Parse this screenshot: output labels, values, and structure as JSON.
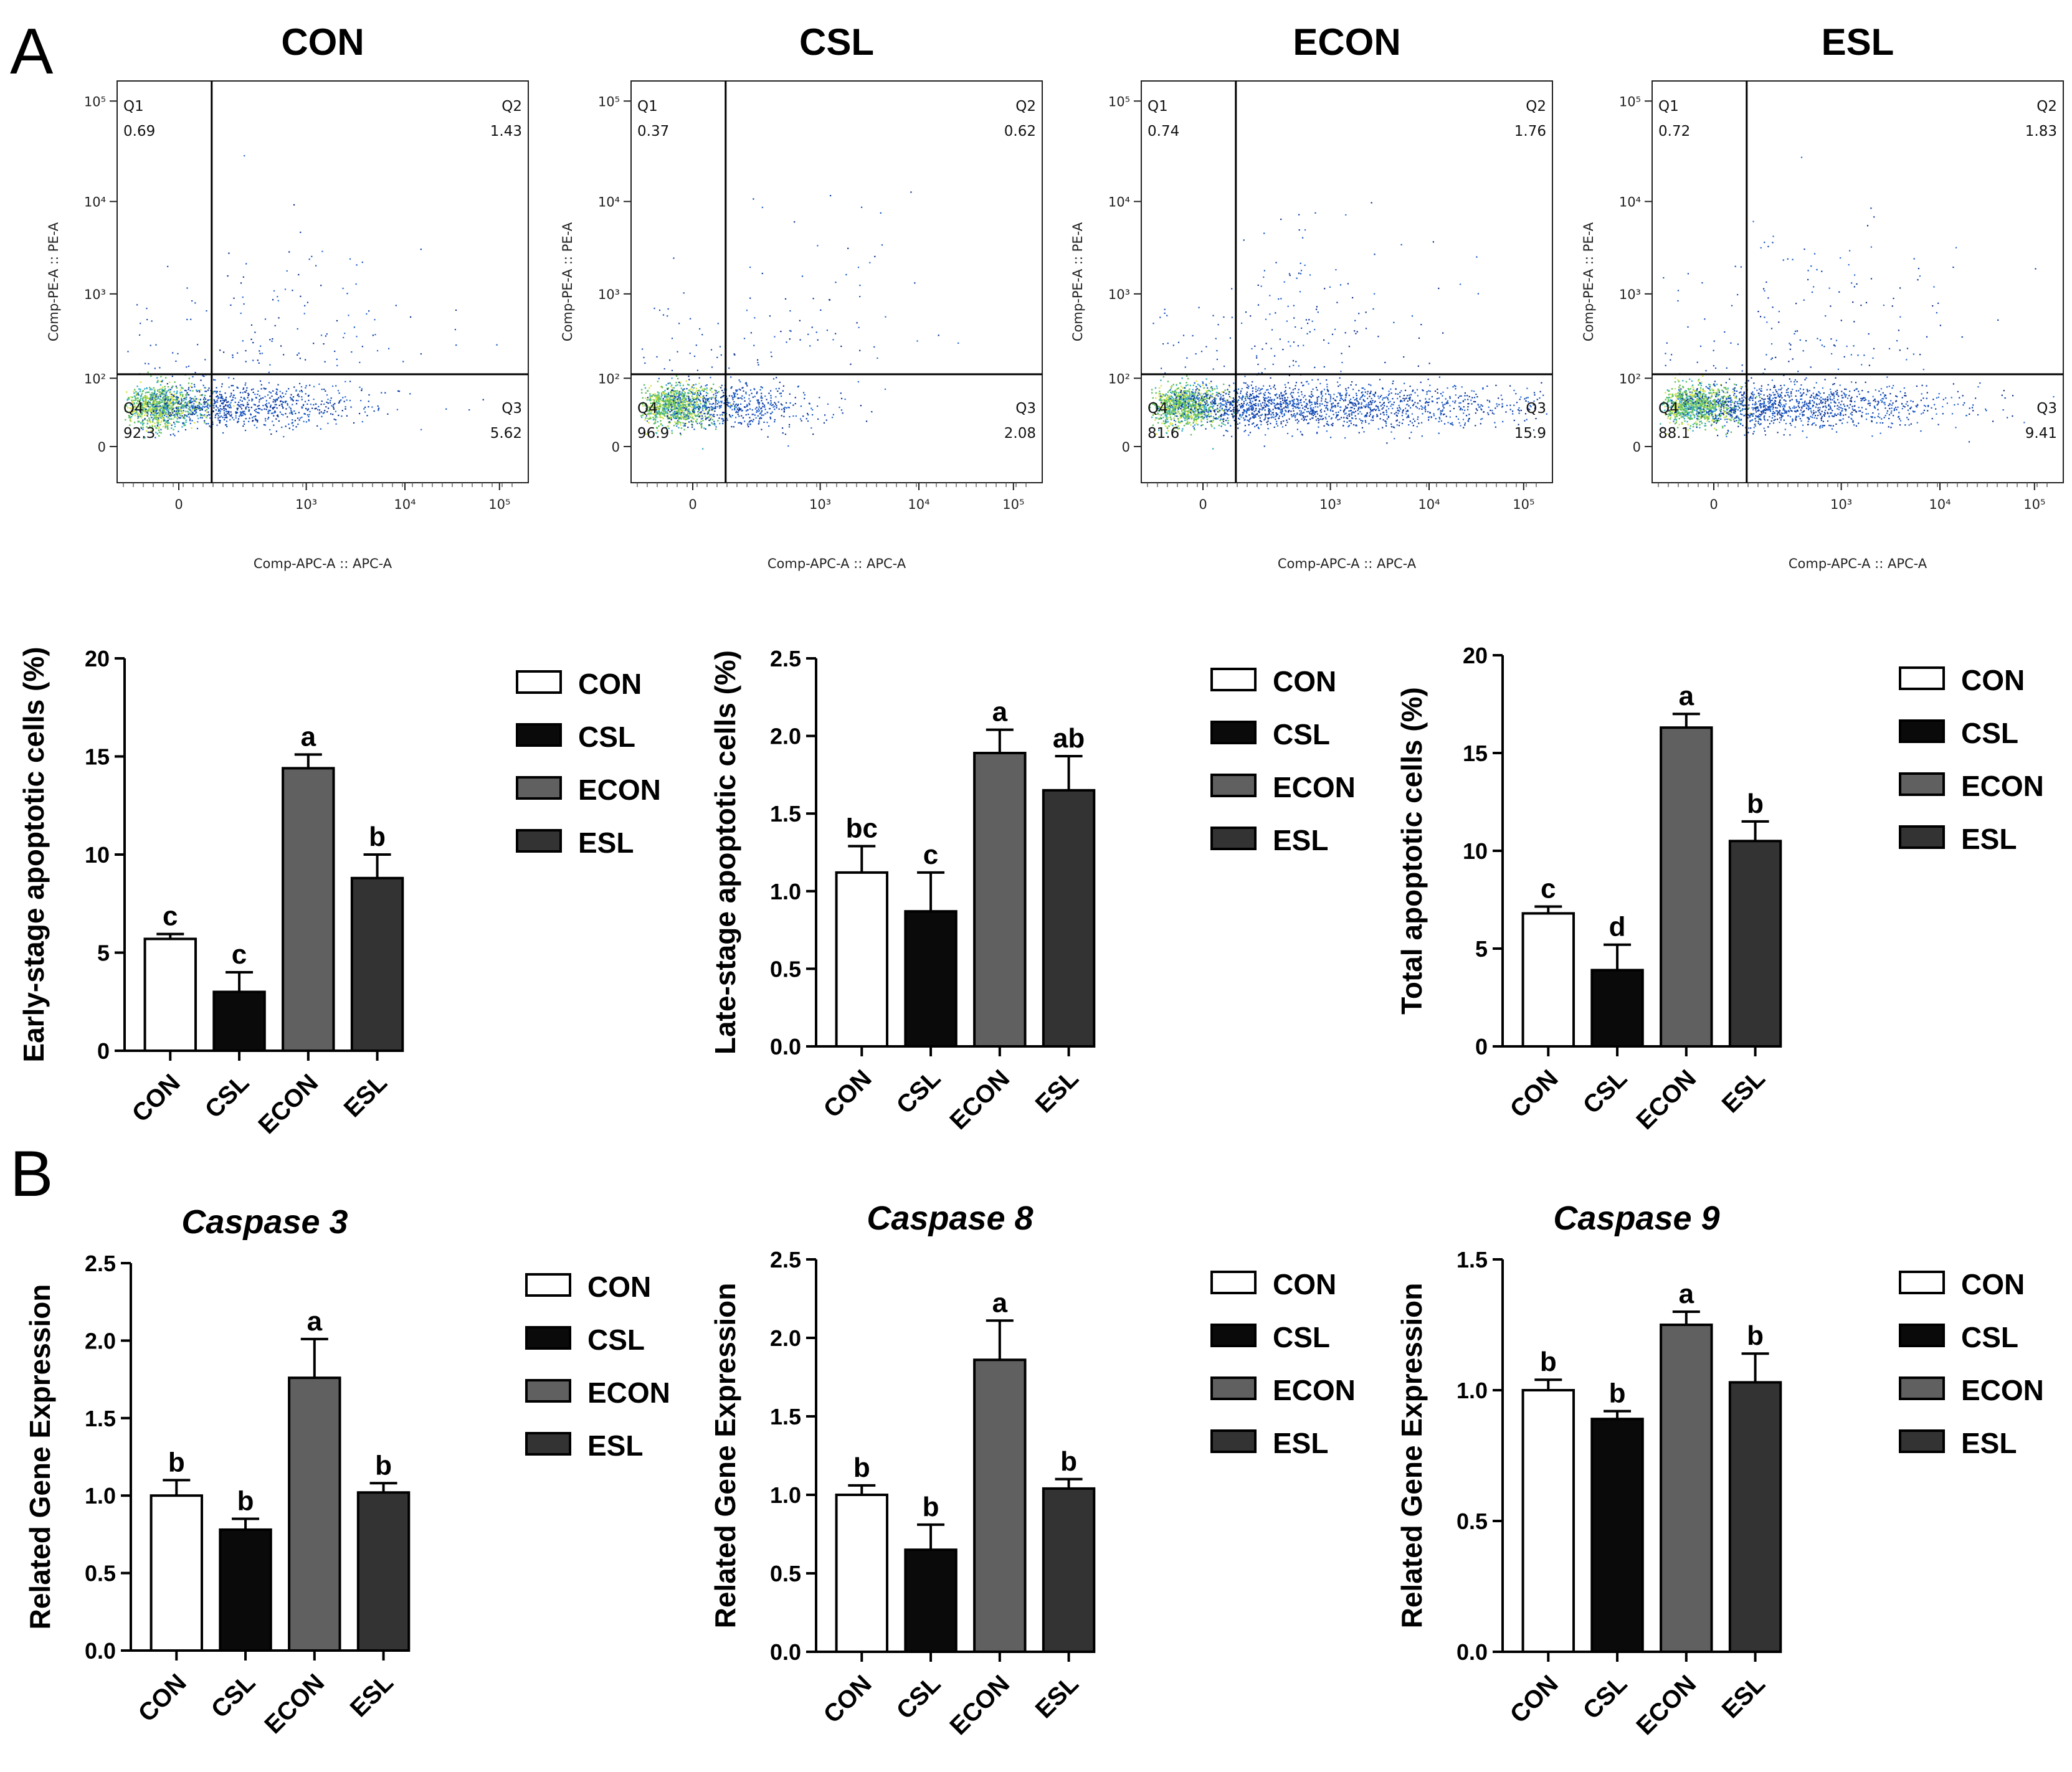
{
  "panel_labels": [
    "A",
    "B"
  ],
  "groups": [
    "CON",
    "CSL",
    "ECON",
    "ESL"
  ],
  "colors": {
    "CON": "#ffffff",
    "CSL": "#0a0a0a",
    "ECON": "#606060",
    "ESL": "#333333"
  },
  "flow": {
    "xlabel": "Comp-APC-A :: APC-A",
    "ylabel": "Comp-PE-A :: PE-A",
    "x_ticks": [
      "0",
      "10³",
      "10⁴",
      "10⁵"
    ],
    "y_ticks": [
      "10⁵",
      "10⁴",
      "10³",
      "10²",
      "0"
    ],
    "plots": [
      {
        "title": "CON",
        "q1": "0.69",
        "q2": "1.43",
        "q3": "5.62",
        "q4": "92.3"
      },
      {
        "title": "CSL",
        "q1": "0.37",
        "q2": "0.62",
        "q3": "2.08",
        "q4": "96.9"
      },
      {
        "title": "ECON",
        "q1": "0.74",
        "q2": "1.76",
        "q3": "15.9",
        "q4": "81.6"
      },
      {
        "title": "ESL",
        "q1": "0.72",
        "q2": "1.83",
        "q3": "9.41",
        "q4": "88.1"
      }
    ]
  },
  "chart_data": [
    {
      "type": "bar",
      "title": "",
      "ylabel": "Early-stage apoptotic cells (%)",
      "categories": [
        "CON",
        "CSL",
        "ECON",
        "ESL"
      ],
      "ylim": [
        0,
        20
      ],
      "yticks": [
        0,
        5,
        10,
        15,
        20
      ],
      "ytick_labels": [
        "0",
        "5",
        "10",
        "15",
        "20"
      ],
      "values": [
        5.7,
        3.0,
        14.4,
        8.8
      ],
      "errors": [
        0.25,
        1.0,
        0.7,
        1.2
      ],
      "letters": [
        "c",
        "c",
        "a",
        "b"
      ]
    },
    {
      "type": "bar",
      "title": "",
      "ylabel": "Late-stage apoptotic cells (%)",
      "categories": [
        "CON",
        "CSL",
        "ECON",
        "ESL"
      ],
      "ylim": [
        0,
        2.5
      ],
      "yticks": [
        0,
        0.5,
        1,
        1.5,
        2,
        2.5
      ],
      "ytick_labels": [
        "0.0",
        "0.5",
        "1.0",
        "1.5",
        "2.0",
        "2.5"
      ],
      "values": [
        1.12,
        0.87,
        1.89,
        1.65
      ],
      "errors": [
        0.17,
        0.25,
        0.15,
        0.22
      ],
      "letters": [
        "bc",
        "c",
        "a",
        "ab"
      ]
    },
    {
      "type": "bar",
      "title": "",
      "ylabel": "Total apoptotic cells (%)",
      "categories": [
        "CON",
        "CSL",
        "ECON",
        "ESL"
      ],
      "ylim": [
        0,
        20
      ],
      "yticks": [
        0,
        5,
        10,
        15,
        20
      ],
      "ytick_labels": [
        "0",
        "5",
        "10",
        "15",
        "20"
      ],
      "values": [
        6.8,
        3.9,
        16.3,
        10.5
      ],
      "errors": [
        0.35,
        1.3,
        0.7,
        1.0
      ],
      "letters": [
        "c",
        "d",
        "a",
        "b"
      ]
    },
    {
      "type": "bar",
      "title": "Caspase 3",
      "ylabel": "Related Gene Expression",
      "categories": [
        "CON",
        "CSL",
        "ECON",
        "ESL"
      ],
      "ylim": [
        0,
        2.5
      ],
      "yticks": [
        0,
        0.5,
        1,
        1.5,
        2,
        2.5
      ],
      "ytick_labels": [
        "0.0",
        "0.5",
        "1.0",
        "1.5",
        "2.0",
        "2.5"
      ],
      "values": [
        1.0,
        0.78,
        1.76,
        1.02
      ],
      "errors": [
        0.1,
        0.07,
        0.25,
        0.06
      ],
      "letters": [
        "b",
        "b",
        "a",
        "b"
      ]
    },
    {
      "type": "bar",
      "title": "Caspase 8",
      "ylabel": "Related Gene Expression",
      "categories": [
        "CON",
        "CSL",
        "ECON",
        "ESL"
      ],
      "ylim": [
        0,
        2.5
      ],
      "yticks": [
        0,
        0.5,
        1,
        1.5,
        2,
        2.5
      ],
      "ytick_labels": [
        "0.0",
        "0.5",
        "1.0",
        "1.5",
        "2.0",
        "2.5"
      ],
      "values": [
        1.0,
        0.65,
        1.86,
        1.04
      ],
      "errors": [
        0.06,
        0.16,
        0.25,
        0.06
      ],
      "letters": [
        "b",
        "b",
        "a",
        "b"
      ]
    },
    {
      "type": "bar",
      "title": "Caspase 9",
      "ylabel": "Related Gene Expression",
      "categories": [
        "CON",
        "CSL",
        "ECON",
        "ESL"
      ],
      "ylim": [
        0,
        1.5
      ],
      "yticks": [
        0,
        0.5,
        1,
        1.5
      ],
      "ytick_labels": [
        "0.0",
        "0.5",
        "1.0",
        "1.5"
      ],
      "values": [
        1.0,
        0.89,
        1.25,
        1.03
      ],
      "errors": [
        0.04,
        0.03,
        0.05,
        0.11
      ],
      "letters": [
        "b",
        "b",
        "a",
        "b"
      ]
    }
  ]
}
